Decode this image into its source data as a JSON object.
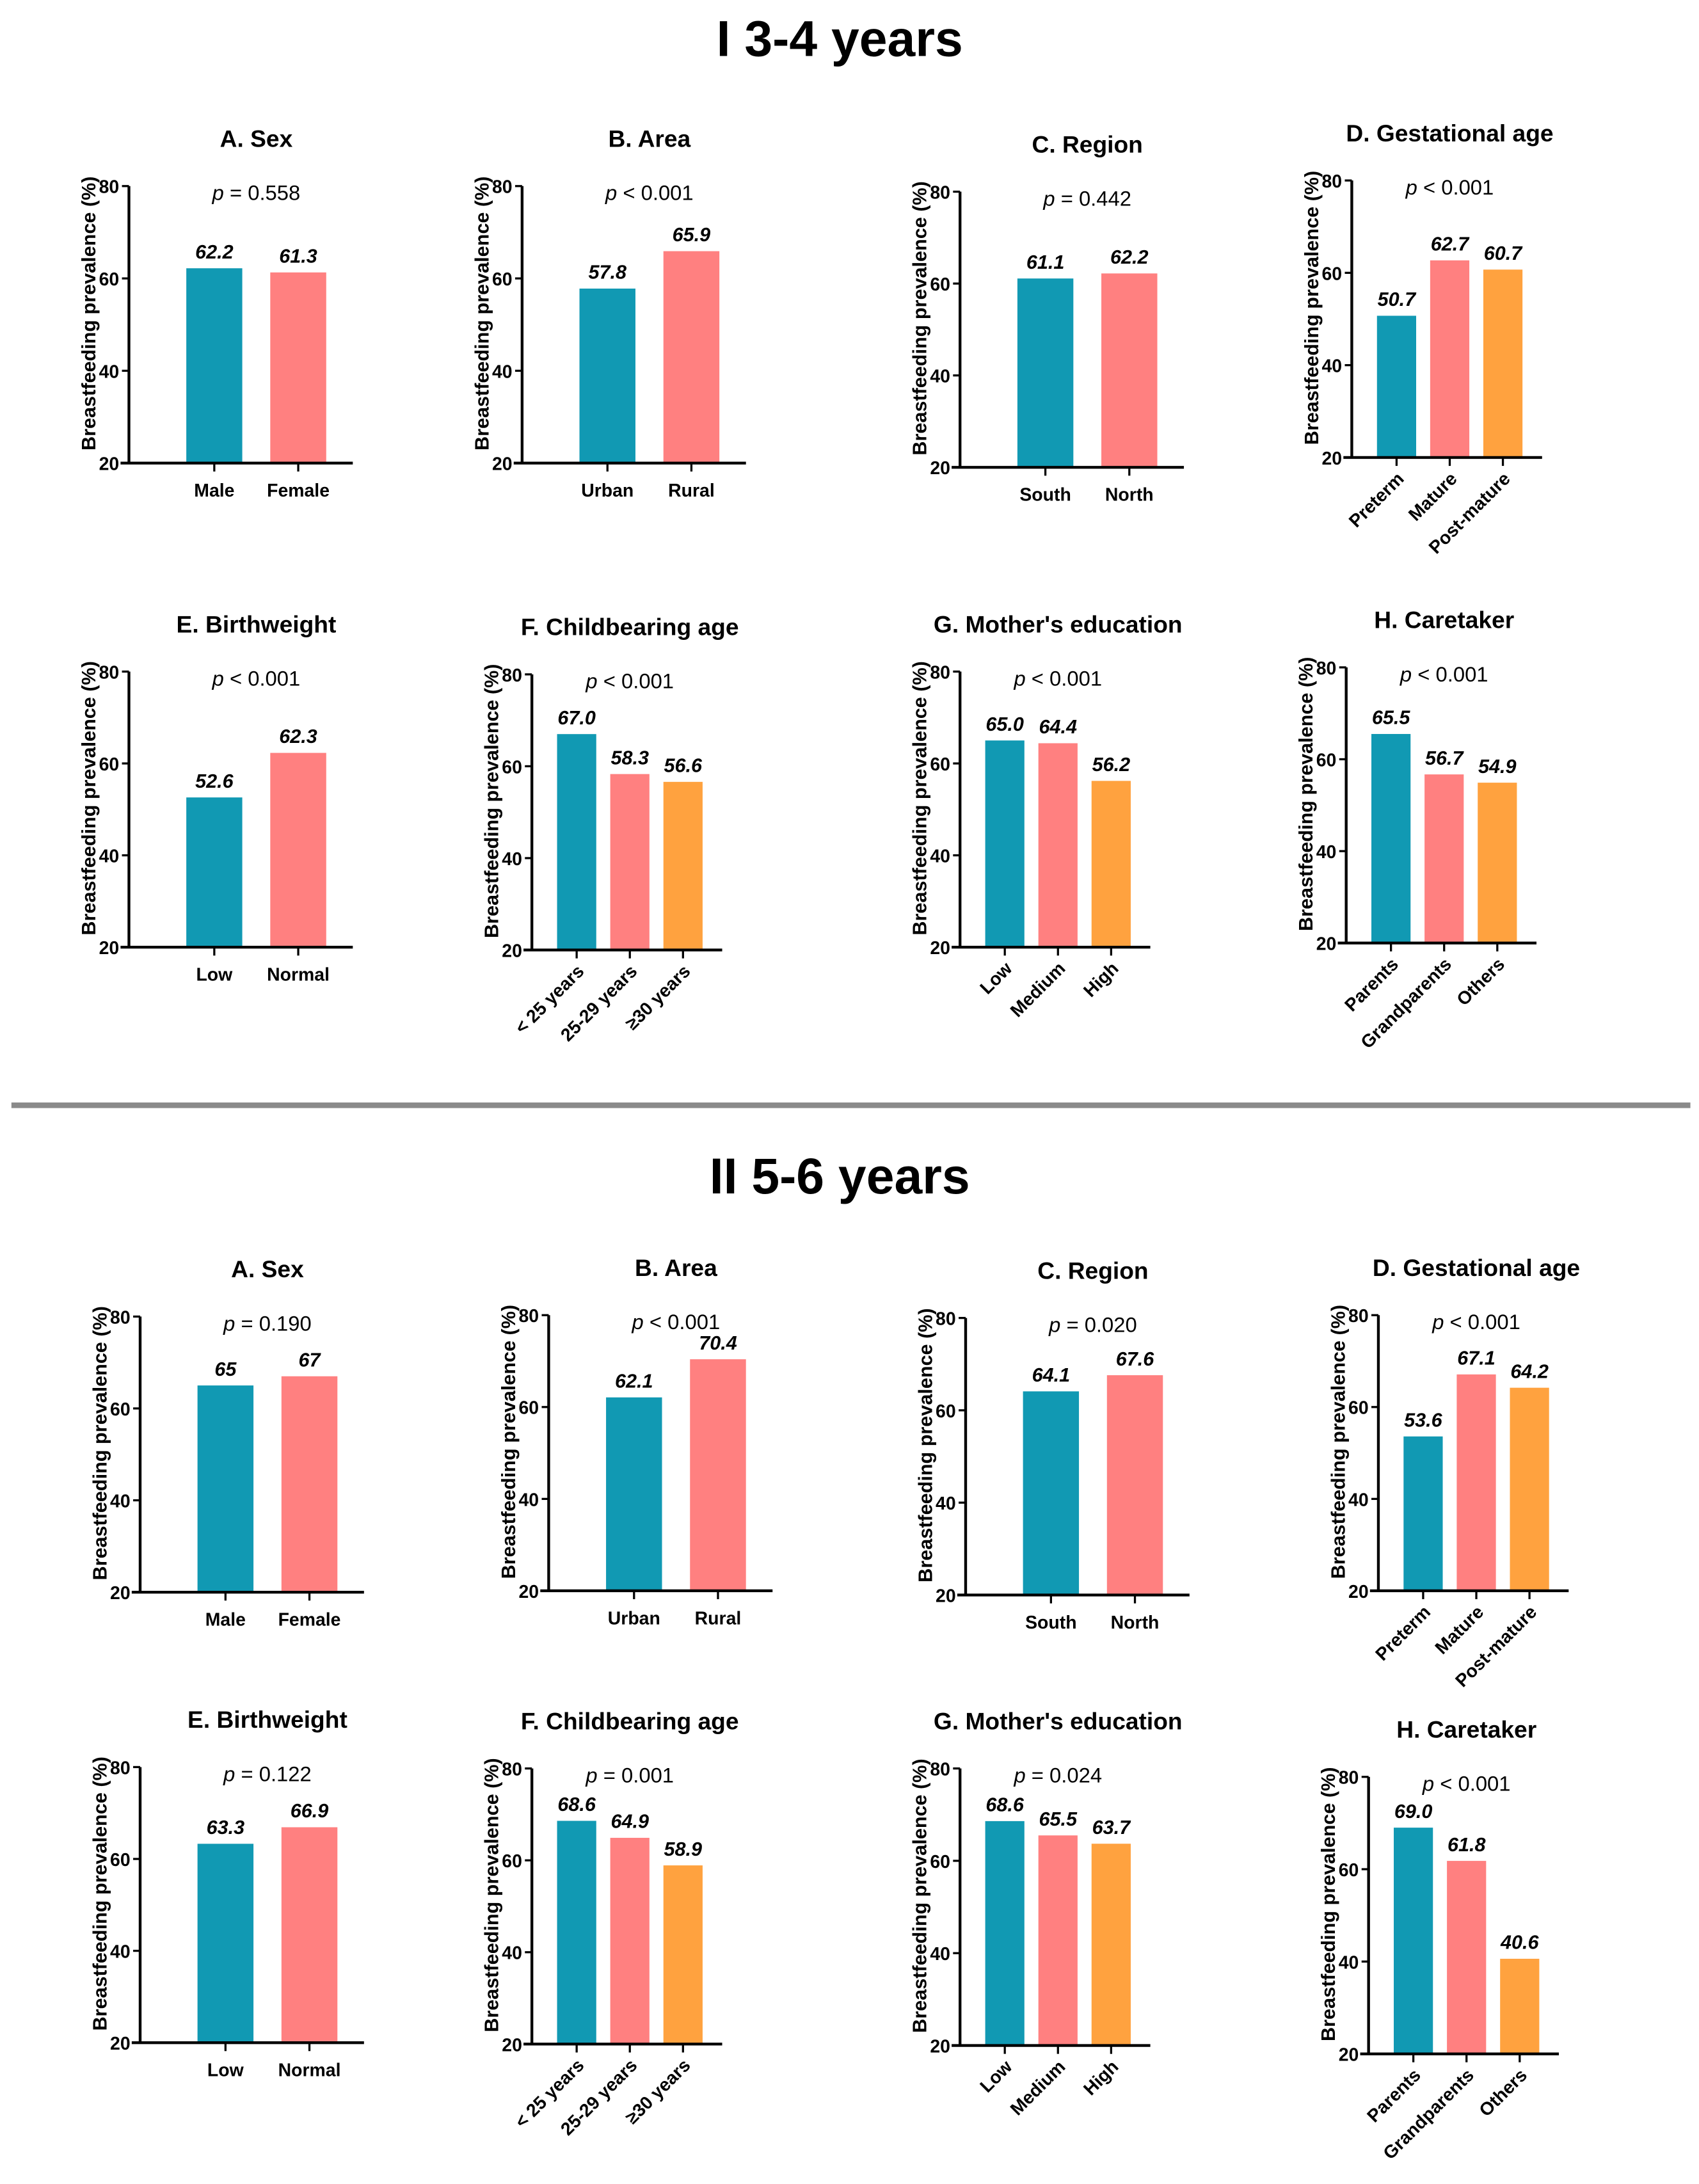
{
  "sections": [
    {
      "title": "I 3-4 years"
    },
    {
      "title": "II 5-6 years"
    }
  ],
  "colors": {
    "teal": "#1199b3",
    "pink": "#ff8080",
    "orange": "#ffa23f",
    "axis": "#000000",
    "divider": "#8a8a8a"
  },
  "chart_data": [
    {
      "section": 0,
      "type": "bar",
      "title": "A. Sex",
      "p_text": "p = 0.558",
      "ylabel": "Breastfeeding prevalence (%)",
      "ylim": [
        20,
        80
      ],
      "yticks": [
        20,
        40,
        60,
        80
      ],
      "categories": [
        "Male",
        "Female"
      ],
      "values": [
        62.2,
        61.3
      ],
      "value_labels": [
        "62.2",
        "61.3"
      ]
    },
    {
      "section": 0,
      "type": "bar",
      "title": "B. Area",
      "p_text": "p < 0.001",
      "ylabel": "Breastfeeding prevalence (%)",
      "ylim": [
        20,
        80
      ],
      "yticks": [
        20,
        40,
        60,
        80
      ],
      "categories": [
        "Urban",
        "Rural"
      ],
      "values": [
        57.8,
        65.9
      ],
      "value_labels": [
        "57.8",
        "65.9"
      ]
    },
    {
      "section": 0,
      "type": "bar",
      "title": "C. Region",
      "p_text": "p = 0.442",
      "ylabel": "Breastfeeding prevalence (%)",
      "ylim": [
        20,
        80
      ],
      "yticks": [
        20,
        40,
        60,
        80
      ],
      "categories": [
        "South",
        "North"
      ],
      "values": [
        61.1,
        62.2
      ],
      "value_labels": [
        "61.1",
        "62.2"
      ]
    },
    {
      "section": 0,
      "type": "bar",
      "title": "D. Gestational age",
      "p_text": "p < 0.001",
      "ylabel": "Breastfeeding prevalence (%)",
      "ylim": [
        20,
        80
      ],
      "yticks": [
        20,
        40,
        60,
        80
      ],
      "categories": [
        "Preterm",
        "Mature",
        "Post-mature"
      ],
      "values": [
        50.7,
        62.7,
        60.7
      ],
      "value_labels": [
        "50.7",
        "62.7",
        "60.7"
      ]
    },
    {
      "section": 0,
      "type": "bar",
      "title": "E. Birthweight",
      "p_text": "p < 0.001",
      "ylabel": "Breastfeeding prevalence (%)",
      "ylim": [
        20,
        80
      ],
      "yticks": [
        20,
        40,
        60,
        80
      ],
      "categories": [
        "Low",
        "Normal"
      ],
      "values": [
        52.6,
        62.3
      ],
      "value_labels": [
        "52.6",
        "62.3"
      ]
    },
    {
      "section": 0,
      "type": "bar",
      "title": "F. Childbearing age",
      "p_text": "p < 0.001",
      "ylabel": "Breastfeeding prevalence (%)",
      "ylim": [
        20,
        80
      ],
      "yticks": [
        20,
        40,
        60,
        80
      ],
      "categories": [
        "< 25 years",
        "25-29 years",
        "≥30 years"
      ],
      "values": [
        67.0,
        58.3,
        56.6
      ],
      "value_labels": [
        "67.0",
        "58.3",
        "56.6"
      ]
    },
    {
      "section": 0,
      "type": "bar",
      "title": "G. Mother's education",
      "p_text": "p < 0.001",
      "ylabel": "Breastfeeding prevalence (%)",
      "ylim": [
        20,
        80
      ],
      "yticks": [
        20,
        40,
        60,
        80
      ],
      "categories": [
        "Low",
        "Medium",
        "High"
      ],
      "values": [
        65.0,
        64.4,
        56.2
      ],
      "value_labels": [
        "65.0",
        "64.4",
        "56.2"
      ]
    },
    {
      "section": 0,
      "type": "bar",
      "title": "H. Caretaker",
      "p_text": "p < 0.001",
      "ylabel": "Breastfeeding prevalence (%)",
      "ylim": [
        20,
        80
      ],
      "yticks": [
        20,
        40,
        60,
        80
      ],
      "categories": [
        "Parents",
        "Grandparents",
        "Others"
      ],
      "values": [
        65.5,
        56.7,
        54.9
      ],
      "value_labels": [
        "65.5",
        "56.7",
        "54.9"
      ]
    },
    {
      "section": 1,
      "type": "bar",
      "title": "A. Sex",
      "p_text": "p = 0.190",
      "ylabel": "Breastfeeding prevalence (%)",
      "ylim": [
        20,
        80
      ],
      "yticks": [
        20,
        40,
        60,
        80
      ],
      "categories": [
        "Male",
        "Female"
      ],
      "values": [
        65,
        67
      ],
      "value_labels": [
        "65",
        "67"
      ]
    },
    {
      "section": 1,
      "type": "bar",
      "title": "B. Area",
      "p_text": "p < 0.001",
      "ylabel": "Breastfeeding prevalence (%)",
      "ylim": [
        20,
        80
      ],
      "yticks": [
        20,
        40,
        60,
        80
      ],
      "categories": [
        "Urban",
        "Rural"
      ],
      "values": [
        62.1,
        70.4
      ],
      "value_labels": [
        "62.1",
        "70.4"
      ]
    },
    {
      "section": 1,
      "type": "bar",
      "title": "C. Region",
      "p_text": "p = 0.020",
      "ylabel": "Breastfeeding prevalence (%)",
      "ylim": [
        20,
        80
      ],
      "yticks": [
        20,
        40,
        60,
        80
      ],
      "categories": [
        "South",
        "North"
      ],
      "values": [
        64.1,
        67.6
      ],
      "value_labels": [
        "64.1",
        "67.6"
      ]
    },
    {
      "section": 1,
      "type": "bar",
      "title": "D. Gestational age",
      "p_text": "p < 0.001",
      "ylabel": "Breastfeeding prevalence (%)",
      "ylim": [
        20,
        80
      ],
      "yticks": [
        20,
        40,
        60,
        80
      ],
      "categories": [
        "Preterm",
        "Mature",
        "Post-mature"
      ],
      "values": [
        53.6,
        67.1,
        64.2
      ],
      "value_labels": [
        "53.6",
        "67.1",
        "64.2"
      ]
    },
    {
      "section": 1,
      "type": "bar",
      "title": "E. Birthweight",
      "p_text": "p = 0.122",
      "ylabel": "Breastfeeding prevalence (%)",
      "ylim": [
        20,
        80
      ],
      "yticks": [
        20,
        40,
        60,
        80
      ],
      "categories": [
        "Low",
        "Normal"
      ],
      "values": [
        63.3,
        66.9
      ],
      "value_labels": [
        "63.3",
        "66.9"
      ]
    },
    {
      "section": 1,
      "type": "bar",
      "title": "F. Childbearing age",
      "p_text": "p = 0.001",
      "ylabel": "Breastfeeding prevalence (%)",
      "ylim": [
        20,
        80
      ],
      "yticks": [
        20,
        40,
        60,
        80
      ],
      "categories": [
        "< 25 years",
        "25-29 years",
        "≥30 years"
      ],
      "values": [
        68.6,
        64.9,
        58.9
      ],
      "value_labels": [
        "68.6",
        "64.9",
        "58.9"
      ]
    },
    {
      "section": 1,
      "type": "bar",
      "title": "G. Mother's education",
      "p_text": "p = 0.024",
      "ylabel": "Breastfeeding prevalence (%)",
      "ylim": [
        20,
        80
      ],
      "yticks": [
        20,
        40,
        60,
        80
      ],
      "categories": [
        "Low",
        "Medium",
        "High"
      ],
      "values": [
        68.6,
        65.5,
        63.7
      ],
      "value_labels": [
        "68.6",
        "65.5",
        "63.7"
      ]
    },
    {
      "section": 1,
      "type": "bar",
      "title": "H. Caretaker",
      "p_text": "p < 0.001",
      "ylabel": "Breastfeeding prevalence (%)",
      "ylim": [
        20,
        80
      ],
      "yticks": [
        20,
        40,
        60,
        80
      ],
      "categories": [
        "Parents",
        "Grandparents",
        "Others"
      ],
      "values": [
        69.0,
        61.8,
        40.6
      ],
      "value_labels": [
        "69.0",
        "61.8",
        "40.6"
      ]
    }
  ]
}
